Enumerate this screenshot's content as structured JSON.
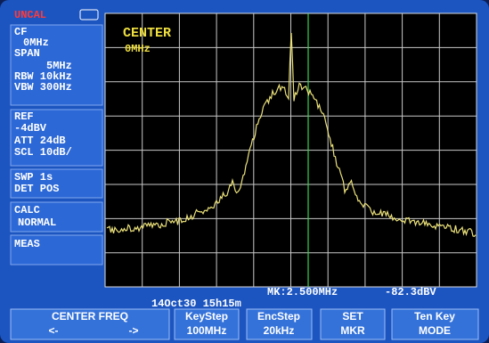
{
  "side_panel": {
    "uncal": "UNCAL",
    "cf_label": "CF",
    "cf_value": "0MHz",
    "span_label": "SPAN",
    "span_value": "5MHz",
    "rbw": "RBW 10kHz",
    "vbw": "VBW 300Hz",
    "ref_label": "REF",
    "ref_value": "-4dBV",
    "att": "ATT 24dB",
    "scl": "SCL 10dB/",
    "swp": "SWP 1s",
    "det": "DET POS",
    "calc_label": "CALC",
    "calc_value": "NORMAL",
    "meas": "MEAS"
  },
  "screen": {
    "mode_label": "CENTER",
    "mode_value": "0MHz",
    "marker_freq": "MK:2.500MHz",
    "marker_level": "-82.3dBV",
    "timestamp": "14Oct30 15h15m"
  },
  "softkeys": [
    {
      "label": "CENTER FREQ",
      "left": "<-",
      "right": "->"
    },
    {
      "label": "KeyStep",
      "value": "100MHz"
    },
    {
      "label": "EncStep",
      "value": "20kHz"
    },
    {
      "label": "SET",
      "value": "MKR"
    },
    {
      "label": "Ten Key",
      "value": "MODE"
    }
  ]
}
